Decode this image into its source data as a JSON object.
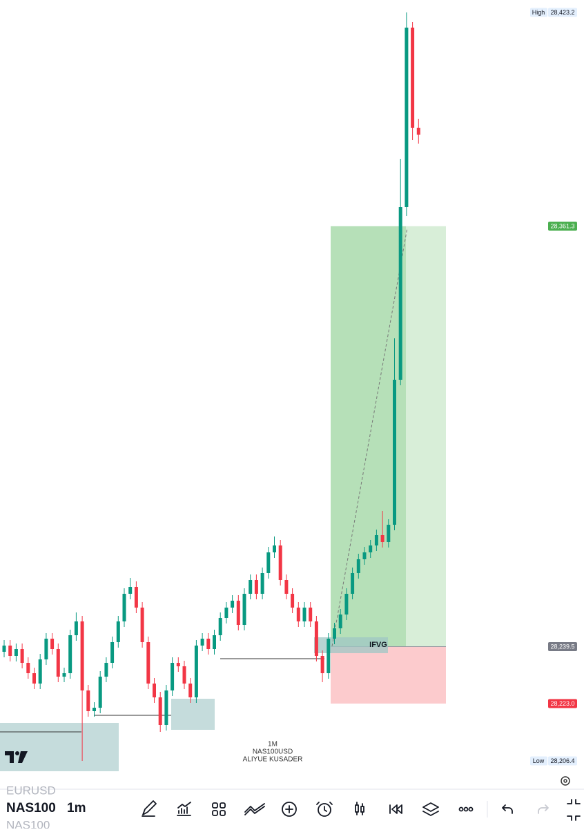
{
  "chart_data": {
    "type": "candlestick",
    "ylim": [
      28198.8,
      28426.8
    ],
    "up_color": "#089981",
    "down_color": "#f23645",
    "open": [
      28238.0,
      28239.8,
      28236.8,
      28238.8,
      28234.8,
      28231.8,
      28228.8,
      28235.8,
      28241.8,
      28238.8,
      28230.8,
      28231.8,
      28242.8,
      28246.8,
      28226.8,
      28220.8,
      28221.8,
      28230.8,
      28234.8,
      28240.8,
      28246.8,
      28254.8,
      28256.8,
      28250.8,
      28240.8,
      28228.8,
      28224.8,
      28216.8,
      28226.8,
      28234.8,
      28233.8,
      28228.8,
      28224.8,
      28239.8,
      28241.8,
      28238.8,
      28242.8,
      28247.8,
      28250.8,
      28252.8,
      28245.8,
      28254.8,
      28258.8,
      28254.8,
      28260.8,
      28266.8,
      28268.8,
      28258.8,
      28254.8,
      28250.8,
      28246.8,
      28250.8,
      28246.8,
      28236.8,
      28231.8,
      28241.8,
      28244.8,
      28248.8,
      28254.8,
      28260.8,
      28264.8,
      28266.8,
      28268.8,
      28271.8,
      28269.8,
      28274.8,
      28316.8,
      28366.8,
      28418.8,
      28389.8
    ],
    "high": [
      28241.4,
      28241.4,
      28240.4,
      28240.4,
      28236.4,
      28233.4,
      28237.4,
      28243.4,
      28243.4,
      28240.4,
      28233.4,
      28244.4,
      28249.4,
      28248.4,
      28228.4,
      28223.4,
      28232.4,
      28236.4,
      28242.4,
      28248.4,
      28256.4,
      28259.4,
      28258.4,
      28252.4,
      28242.4,
      28230.4,
      28226.4,
      28228.4,
      28236.4,
      28236.4,
      28235.4,
      28230.4,
      28241.4,
      28243.4,
      28243.4,
      28244.4,
      28249.4,
      28252.4,
      28254.4,
      28254.4,
      28256.4,
      28260.4,
      28260.4,
      28262.4,
      28268.4,
      28271.4,
      28270.4,
      28260.4,
      28256.4,
      28252.4,
      28252.4,
      28252.4,
      28248.4,
      28238.4,
      28243.4,
      28246.4,
      28250.4,
      28256.4,
      28262.4,
      28266.4,
      28268.4,
      28270.4,
      28273.4,
      28278.8,
      28276.4,
      28328.8,
      28380.8,
      28423.2,
      28420.4,
      28392.4
    ],
    "low": [
      28236.4,
      28235.2,
      28235.2,
      28233.2,
      28230.2,
      28227.2,
      28227.2,
      28234.2,
      28237.2,
      28229.2,
      28229.2,
      28230.2,
      28241.2,
      28206.4,
      28219.2,
      28219.2,
      28220.2,
      28229.2,
      28233.2,
      28239.2,
      28245.2,
      28253.2,
      28249.2,
      28239.2,
      28227.2,
      28223.2,
      28214.8,
      28215.2,
      28225.2,
      28232.2,
      28227.2,
      28223.2,
      28223.2,
      28238.2,
      28237.2,
      28237.2,
      28241.2,
      28246.2,
      28249.2,
      28244.2,
      28244.2,
      28253.2,
      28253.2,
      28253.2,
      28259.2,
      28265.2,
      28257.2,
      28253.2,
      28249.2,
      28245.2,
      28245.2,
      28245.2,
      28235.2,
      28229.2,
      28230.2,
      28240.2,
      28243.2,
      28247.2,
      28253.2,
      28259.2,
      28263.2,
      28265.2,
      28267.2,
      28268.2,
      28268.2,
      28273.2,
      28315.2,
      28364.2,
      28386.2,
      28385.2
    ],
    "close": [
      28239.8,
      28236.8,
      28238.8,
      28234.8,
      28231.8,
      28228.8,
      28235.8,
      28241.8,
      28238.8,
      28230.8,
      28231.8,
      28242.8,
      28246.8,
      28226.8,
      28220.8,
      28221.8,
      28230.8,
      28234.8,
      28240.8,
      28246.8,
      28254.8,
      28256.8,
      28250.8,
      28240.8,
      28228.8,
      28224.8,
      28216.8,
      28226.8,
      28234.8,
      28233.8,
      28228.8,
      28224.8,
      28239.8,
      28241.8,
      28238.8,
      28242.8,
      28247.8,
      28250.8,
      28252.8,
      28245.8,
      28254.8,
      28258.8,
      28254.8,
      28260.8,
      28266.8,
      28268.8,
      28258.8,
      28254.8,
      28250.8,
      28246.8,
      28250.8,
      28246.8,
      28236.8,
      28231.8,
      28241.8,
      28244.8,
      28248.8,
      28254.8,
      28260.8,
      28264.8,
      28266.8,
      28268.8,
      28271.8,
      28269.8,
      28274.8,
      28316.8,
      28366.8,
      28418.8,
      28389.8,
      28387.8
    ],
    "price_labels": [
      {
        "value": 28423.2,
        "label": "28,423.2",
        "tag": "High",
        "color": "#e3effd",
        "text_color": "#131722"
      },
      {
        "value": 28361.3,
        "label": "28,361.3",
        "color": "#4caf50",
        "text_color": "#ffffff"
      },
      {
        "value": 28239.5,
        "label": "28,239.5",
        "color": "#787b86",
        "text_color": "#ffffff"
      },
      {
        "value": 28223.0,
        "label": "28,223.0",
        "color": "#f23645",
        "text_color": "#ffffff"
      },
      {
        "value": 28206.4,
        "label": "28,206.4",
        "tag": "Low",
        "color": "#e3effd",
        "text_color": "#131722"
      }
    ],
    "annotation": "IFVG",
    "watermark": [
      "1M",
      "NAS100USD",
      "ALIYUE KUSADER"
    ]
  },
  "toolbar": {
    "symbols": [
      "EURUSD",
      "NAS100",
      "NAS100"
    ],
    "interval": "1m"
  }
}
